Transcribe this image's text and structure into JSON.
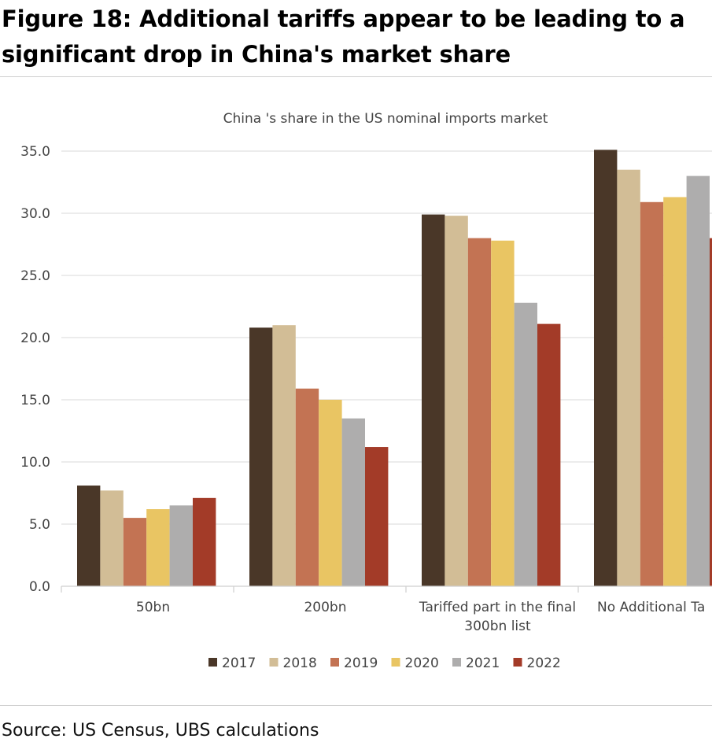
{
  "figure_title": "Figure 18: Additional tariffs appear to be leading to a significant drop in China's market share",
  "source": "Source: US Census, UBS calculations",
  "chart_data": {
    "type": "bar",
    "title": "China 's share in the US nominal imports market",
    "categories": [
      "50bn",
      "200bn",
      "Tariffed part in the final 300bn list",
      "No Additional Tariffs"
    ],
    "category_lines": [
      [
        "50bn"
      ],
      [
        "200bn"
      ],
      [
        "Tariffed part in the final",
        "300bn list"
      ],
      [
        "No Additional Ta"
      ]
    ],
    "series": [
      {
        "name": "2017",
        "color": "#4a3728",
        "values": [
          8.1,
          20.8,
          29.9,
          35.1
        ]
      },
      {
        "name": "2018",
        "color": "#d2bd96",
        "values": [
          7.7,
          21.0,
          29.8,
          33.5
        ]
      },
      {
        "name": "2019",
        "color": "#c37353",
        "values": [
          5.5,
          15.9,
          28.0,
          30.9
        ]
      },
      {
        "name": "2020",
        "color": "#e9c563",
        "values": [
          6.2,
          15.0,
          27.8,
          31.3
        ]
      },
      {
        "name": "2021",
        "color": "#aeadad",
        "values": [
          6.5,
          13.5,
          22.8,
          33.0
        ]
      },
      {
        "name": "2022",
        "color": "#a33b28",
        "values": [
          7.1,
          11.2,
          21.1,
          28.0
        ]
      }
    ],
    "ylim": [
      0,
      35
    ],
    "yticks": [
      "0.0",
      "5.0",
      "10.0",
      "15.0",
      "20.0",
      "25.0",
      "30.0",
      "35.0"
    ],
    "grid": true,
    "legend": "bottom"
  }
}
